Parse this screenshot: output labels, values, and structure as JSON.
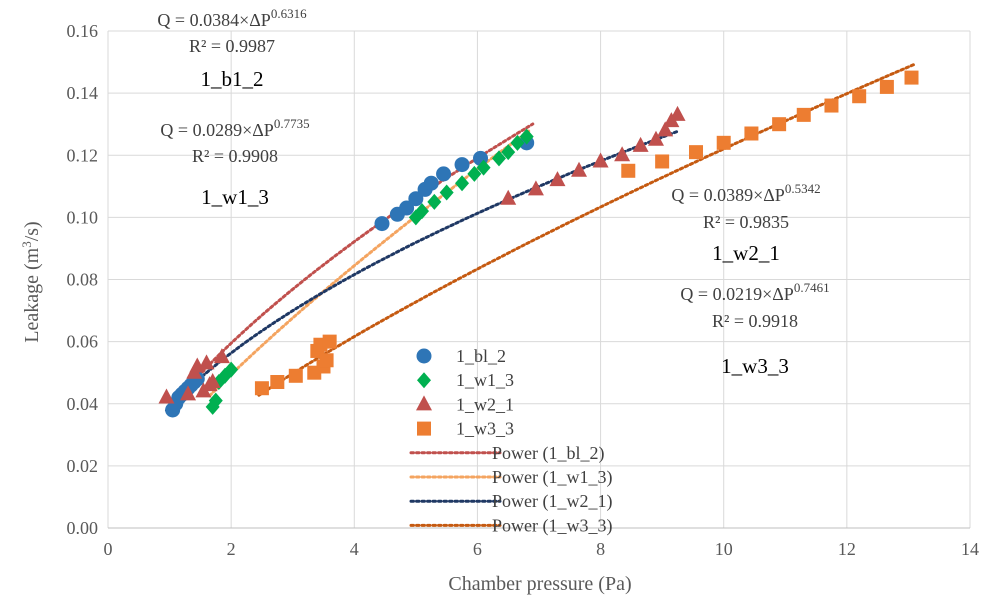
{
  "chart_data": {
    "type": "scatter",
    "xlabel": "Chamber pressure (Pa)",
    "ylabel_main": "Leakage (m",
    "ylabel_sup": "3",
    "ylabel_tail": "/s)",
    "xlim": [
      0,
      14
    ],
    "ylim": [
      0,
      0.16
    ],
    "xticks": [
      0,
      2,
      4,
      6,
      8,
      10,
      12,
      14
    ],
    "xtick_labels": [
      "0",
      "2",
      "4",
      "6",
      "8",
      "10",
      "12",
      "14"
    ],
    "yticks": [
      0,
      0.02,
      0.04,
      0.06,
      0.08,
      0.1,
      0.12,
      0.14,
      0.16
    ],
    "ytick_labels": [
      "0.00",
      "0.02",
      "0.04",
      "0.06",
      "0.08",
      "0.10",
      "0.12",
      "0.14",
      "0.16"
    ],
    "grid": true,
    "legend_position": "center",
    "series": [
      {
        "name": "1_bl_2",
        "marker": "circle",
        "color": "#2e75b6",
        "points": [
          [
            1.05,
            0.038
          ],
          [
            1.1,
            0.04
          ],
          [
            1.15,
            0.042
          ],
          [
            1.2,
            0.043
          ],
          [
            1.25,
            0.044
          ],
          [
            1.3,
            0.045
          ],
          [
            1.35,
            0.046
          ],
          [
            1.4,
            0.047
          ],
          [
            1.45,
            0.048
          ],
          [
            4.45,
            0.098
          ],
          [
            4.7,
            0.101
          ],
          [
            4.85,
            0.103
          ],
          [
            5.0,
            0.106
          ],
          [
            5.15,
            0.109
          ],
          [
            5.25,
            0.111
          ],
          [
            5.45,
            0.114
          ],
          [
            5.75,
            0.117
          ],
          [
            6.05,
            0.119
          ],
          [
            6.8,
            0.124
          ]
        ]
      },
      {
        "name": "1_w1_3",
        "marker": "diamond",
        "color": "#00b050",
        "points": [
          [
            1.7,
            0.039
          ],
          [
            1.75,
            0.041
          ],
          [
            1.8,
            0.047
          ],
          [
            1.9,
            0.049
          ],
          [
            2.0,
            0.051
          ],
          [
            5.0,
            0.1
          ],
          [
            5.1,
            0.102
          ],
          [
            5.3,
            0.105
          ],
          [
            5.5,
            0.108
          ],
          [
            5.75,
            0.111
          ],
          [
            5.95,
            0.114
          ],
          [
            6.1,
            0.116
          ],
          [
            6.35,
            0.119
          ],
          [
            6.5,
            0.121
          ],
          [
            6.65,
            0.124
          ],
          [
            6.8,
            0.126
          ]
        ]
      },
      {
        "name": "1_w2_1",
        "marker": "triangle",
        "color": "#c0504d",
        "points": [
          [
            0.95,
            0.042
          ],
          [
            1.3,
            0.043
          ],
          [
            1.4,
            0.05
          ],
          [
            1.45,
            0.052
          ],
          [
            1.55,
            0.044
          ],
          [
            1.6,
            0.053
          ],
          [
            1.65,
            0.046
          ],
          [
            1.7,
            0.047
          ],
          [
            1.85,
            0.055
          ],
          [
            6.5,
            0.106
          ],
          [
            6.95,
            0.109
          ],
          [
            7.3,
            0.112
          ],
          [
            7.65,
            0.115
          ],
          [
            8.0,
            0.118
          ],
          [
            8.35,
            0.12
          ],
          [
            8.65,
            0.123
          ],
          [
            8.9,
            0.125
          ],
          [
            9.05,
            0.128
          ],
          [
            9.15,
            0.131
          ],
          [
            9.25,
            0.133
          ]
        ]
      },
      {
        "name": "1_w3_3",
        "marker": "square",
        "color": "#ed7d31",
        "points": [
          [
            2.5,
            0.045
          ],
          [
            2.75,
            0.047
          ],
          [
            3.05,
            0.049
          ],
          [
            3.35,
            0.05
          ],
          [
            3.4,
            0.057
          ],
          [
            3.45,
            0.059
          ],
          [
            3.5,
            0.052
          ],
          [
            3.55,
            0.054
          ],
          [
            3.6,
            0.06
          ],
          [
            8.45,
            0.115
          ],
          [
            9.0,
            0.118
          ],
          [
            9.55,
            0.121
          ],
          [
            10.0,
            0.124
          ],
          [
            10.45,
            0.127
          ],
          [
            10.9,
            0.13
          ],
          [
            11.3,
            0.133
          ],
          [
            11.75,
            0.136
          ],
          [
            12.2,
            0.139
          ],
          [
            12.65,
            0.142
          ],
          [
            13.05,
            0.145
          ]
        ]
      }
    ],
    "trendlines": [
      {
        "name": "Power (1_bl_2)",
        "color": "#c0504d",
        "a": 0.0384,
        "b": 0.6316,
        "x_range": [
          1.0,
          6.9
        ]
      },
      {
        "name": "Power (1_w1_3)",
        "color": "#f4a460",
        "a": 0.0289,
        "b": 0.7735,
        "x_range": [
          1.65,
          6.85
        ]
      },
      {
        "name": "Power (1_w2_1)",
        "color": "#1f3864",
        "a": 0.0389,
        "b": 0.5342,
        "x_range": [
          0.95,
          9.25
        ]
      },
      {
        "name": "Power (1_w3_3)",
        "color": "#c55a11",
        "a": 0.0219,
        "b": 0.7461,
        "x_range": [
          2.45,
          13.1
        ]
      }
    ],
    "annotations": [
      {
        "id": "b1",
        "eq_prefix": "Q = 0.0384×ΔP",
        "exponent": "0.6316",
        "r2": "R² = 0.9987",
        "label": "1_b1_2"
      },
      {
        "id": "w1",
        "eq_prefix": "Q = 0.0289×ΔP",
        "exponent": "0.7735",
        "r2": "R² = 0.9908",
        "label": "1_w1_3"
      },
      {
        "id": "w2",
        "eq_prefix": "Q = 0.0389×ΔP",
        "exponent": "0.5342",
        "r2": "R² = 0.9835",
        "label": "1_w2_1"
      },
      {
        "id": "w3",
        "eq_prefix": "Q = 0.0219×ΔP",
        "exponent": "0.7461",
        "r2": "R² = 0.9918",
        "label": "1_w3_3"
      }
    ]
  }
}
